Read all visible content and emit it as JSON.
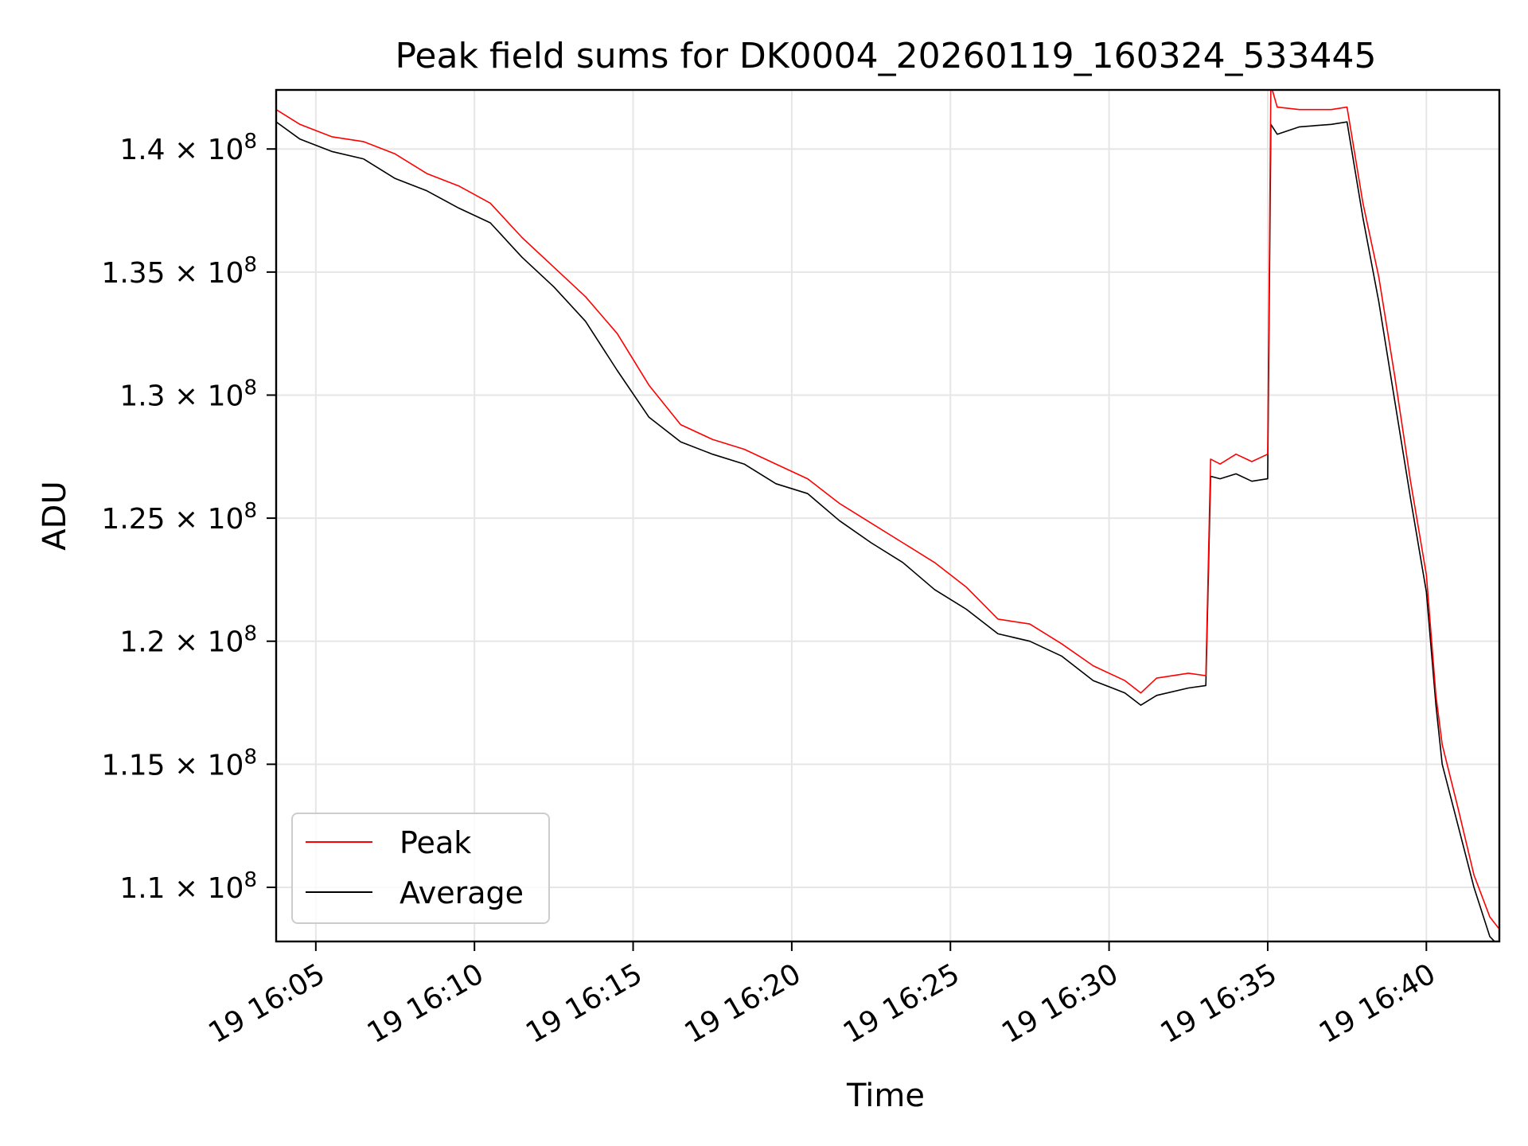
{
  "chart_data": {
    "type": "line",
    "title": "Peak field sums for DK0004_20260119_160324_533445",
    "xlabel": "Time",
    "ylabel": "ADU",
    "grid": true,
    "legend_position": "lower-left",
    "x_unit": "minutes after 16:00 on day 19",
    "xlim": [
      3.75,
      42.3
    ],
    "ylim": [
      107800000,
      142400000
    ],
    "x_ticks": [
      {
        "value": 5,
        "label": "19 16:05"
      },
      {
        "value": 10,
        "label": "19 16:10"
      },
      {
        "value": 15,
        "label": "19 16:15"
      },
      {
        "value": 20,
        "label": "19 16:20"
      },
      {
        "value": 25,
        "label": "19 16:25"
      },
      {
        "value": 30,
        "label": "19 16:30"
      },
      {
        "value": 35,
        "label": "19 16:35"
      },
      {
        "value": 40,
        "label": "19 16:40"
      }
    ],
    "y_ticks": [
      {
        "value": 110000000,
        "mantissa": "1.1",
        "label": "1.1 × 10^8"
      },
      {
        "value": 115000000,
        "mantissa": "1.15",
        "label": "1.15 × 10^8"
      },
      {
        "value": 120000000,
        "mantissa": "1.2",
        "label": "1.2 × 10^8"
      },
      {
        "value": 125000000,
        "mantissa": "1.25",
        "label": "1.25 × 10^8"
      },
      {
        "value": 130000000,
        "mantissa": "1.3",
        "label": "1.3 × 10^8"
      },
      {
        "value": 135000000,
        "mantissa": "1.35",
        "label": "1.35 × 10^8"
      },
      {
        "value": 140000000,
        "mantissa": "1.4",
        "label": "1.4 × 10^8"
      }
    ],
    "y_tick_format": {
      "times": "×",
      "base": "10",
      "exponent": "8"
    },
    "series": [
      {
        "name": "Peak",
        "color": "#ff0000",
        "x": [
          3.75,
          4.5,
          5.5,
          6.5,
          7.5,
          8.5,
          9.5,
          10.5,
          11.5,
          12.5,
          13.5,
          14.5,
          15.5,
          16.5,
          17.5,
          18.5,
          19.5,
          20.5,
          21.5,
          22.5,
          23.5,
          24.5,
          25.5,
          26.5,
          27.5,
          28.5,
          29.5,
          30.5,
          31.0,
          31.5,
          32.5,
          33.05,
          33.2,
          33.5,
          34.0,
          34.5,
          35.0,
          35.1,
          35.3,
          36.0,
          37.0,
          37.5,
          38.0,
          38.5,
          39.0,
          39.5,
          40.0,
          40.3,
          40.5,
          41.0,
          41.5,
          42.0,
          42.3
        ],
        "y": [
          141600000,
          141000000,
          140500000,
          140300000,
          139800000,
          139000000,
          138500000,
          137800000,
          136400000,
          135200000,
          134000000,
          132500000,
          130400000,
          128800000,
          128200000,
          127800000,
          127200000,
          126600000,
          125600000,
          124800000,
          124000000,
          123200000,
          122200000,
          120900000,
          120700000,
          119900000,
          119000000,
          118400000,
          117900000,
          118500000,
          118700000,
          118600000,
          127400000,
          127200000,
          127600000,
          127300000,
          127600000,
          142600000,
          141700000,
          141600000,
          141600000,
          141700000,
          137800000,
          134800000,
          130800000,
          126500000,
          122700000,
          117800000,
          115800000,
          113200000,
          110500000,
          108800000,
          108300000
        ]
      },
      {
        "name": "Average",
        "color": "#000000",
        "x": [
          3.75,
          4.5,
          5.5,
          6.5,
          7.5,
          8.5,
          9.5,
          10.5,
          11.5,
          12.5,
          13.5,
          14.5,
          15.5,
          16.5,
          17.5,
          18.5,
          19.5,
          20.5,
          21.5,
          22.5,
          23.5,
          24.5,
          25.5,
          26.5,
          27.5,
          28.5,
          29.5,
          30.5,
          31.0,
          31.5,
          32.5,
          33.05,
          33.2,
          33.5,
          34.0,
          34.5,
          35.0,
          35.1,
          35.3,
          36.0,
          37.0,
          37.5,
          38.0,
          38.5,
          39.0,
          39.5,
          40.0,
          40.3,
          40.5,
          41.0,
          41.5,
          42.0,
          42.3
        ],
        "y": [
          141100000,
          140400000,
          139900000,
          139600000,
          138800000,
          138300000,
          137600000,
          137000000,
          135600000,
          134400000,
          133000000,
          131000000,
          129100000,
          128100000,
          127600000,
          127200000,
          126400000,
          126000000,
          124900000,
          124000000,
          123200000,
          122100000,
          121300000,
          120300000,
          120000000,
          119400000,
          118400000,
          117900000,
          117400000,
          117800000,
          118100000,
          118200000,
          126700000,
          126600000,
          126800000,
          126500000,
          126600000,
          141000000,
          140600000,
          140900000,
          141000000,
          141100000,
          137200000,
          133800000,
          129800000,
          125800000,
          122000000,
          117400000,
          115000000,
          112500000,
          110000000,
          108000000,
          107600000
        ]
      }
    ]
  }
}
